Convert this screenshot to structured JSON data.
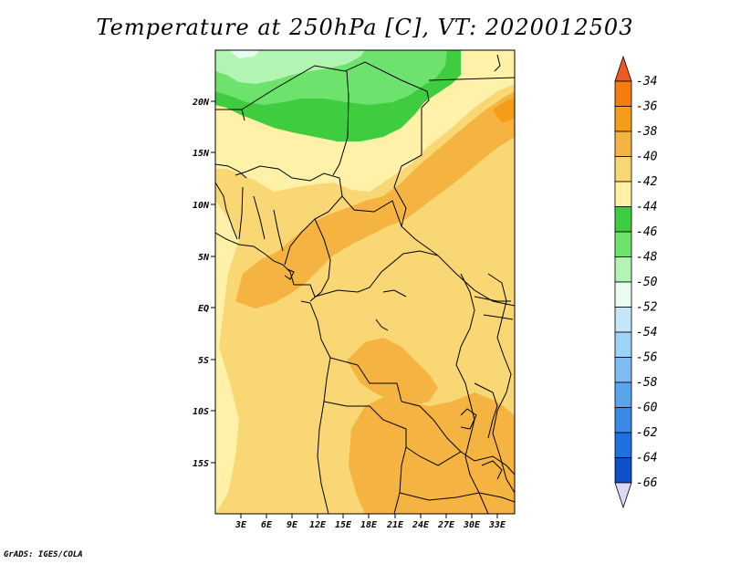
{
  "title": "Temperature at 250hPa [C], VT: 2020012503",
  "credit": "GrADS: IGES/COLA",
  "map": {
    "latitude_labels": [
      "20N",
      "15N",
      "10N",
      "5N",
      "EQ",
      "5S",
      "10S",
      "15S"
    ],
    "longitude_labels": [
      "3E",
      "6E",
      "9E",
      "12E",
      "15E",
      "18E",
      "21E",
      "24E",
      "27E",
      "30E",
      "33E"
    ]
  },
  "colorbar": {
    "labels": [
      "-34",
      "-36",
      "-38",
      "-40",
      "-42",
      "-44",
      "-46",
      "-48",
      "-50",
      "-52",
      "-54",
      "-56",
      "-58",
      "-60",
      "-62",
      "-64",
      "-66"
    ],
    "colors": {
      "above_-34": "#f05a1e",
      "-34_-36": "#f77c10",
      "-36_-38": "#f59d18",
      "-38_-40": "#f5b441",
      "-40_-42": "#f8d774",
      "-42_-44": "#fff2a8",
      "-44_-46": "#3fcc3f",
      "-46_-48": "#6de36d",
      "-48_-50": "#b2f5b2",
      "-50_-52": "#e8fcf0",
      "-52_-54": "#c3e6fa",
      "-54_-56": "#9fd2f7",
      "-56_-58": "#7dbdf3",
      "-58_-60": "#5aa4ee",
      "-60_-62": "#3a8ae7",
      "-62_-64": "#1e6fe0",
      "-64_-66": "#0f4fc8",
      "below_-66": "#0a1e7a",
      "extend_bottom": "#dcd9f2"
    }
  }
}
